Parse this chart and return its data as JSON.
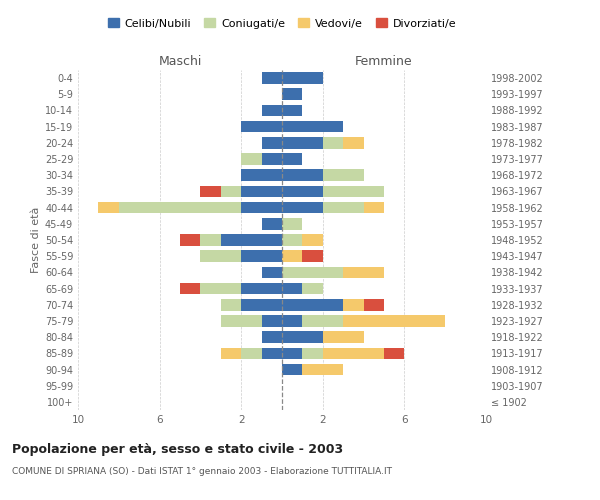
{
  "age_groups": [
    "100+",
    "95-99",
    "90-94",
    "85-89",
    "80-84",
    "75-79",
    "70-74",
    "65-69",
    "60-64",
    "55-59",
    "50-54",
    "45-49",
    "40-44",
    "35-39",
    "30-34",
    "25-29",
    "20-24",
    "15-19",
    "10-14",
    "5-9",
    "0-4"
  ],
  "birth_years": [
    "≤ 1902",
    "1903-1907",
    "1908-1912",
    "1913-1917",
    "1918-1922",
    "1923-1927",
    "1928-1932",
    "1933-1937",
    "1938-1942",
    "1943-1947",
    "1948-1952",
    "1953-1957",
    "1958-1962",
    "1963-1967",
    "1968-1972",
    "1973-1977",
    "1978-1982",
    "1983-1987",
    "1988-1992",
    "1993-1997",
    "1998-2002"
  ],
  "colors": {
    "celibe": "#3d6fad",
    "coniugato": "#c5d8a4",
    "vedovo": "#f5c96b",
    "divorziato": "#d94f3e"
  },
  "maschi": {
    "celibe": [
      0,
      0,
      0,
      1,
      1,
      1,
      2,
      2,
      1,
      2,
      3,
      1,
      2,
      2,
      2,
      1,
      1,
      2,
      1,
      0,
      1
    ],
    "coniugato": [
      0,
      0,
      0,
      1,
      0,
      2,
      1,
      2,
      0,
      2,
      1,
      0,
      6,
      1,
      0,
      1,
      0,
      0,
      0,
      0,
      0
    ],
    "vedovo": [
      0,
      0,
      0,
      1,
      0,
      0,
      0,
      0,
      0,
      0,
      0,
      0,
      1,
      0,
      0,
      0,
      0,
      0,
      0,
      0,
      0
    ],
    "divorziato": [
      0,
      0,
      0,
      0,
      0,
      0,
      0,
      1,
      0,
      0,
      1,
      0,
      0,
      1,
      0,
      0,
      0,
      0,
      0,
      0,
      0
    ]
  },
  "femmine": {
    "celibe": [
      0,
      0,
      1,
      1,
      2,
      1,
      3,
      1,
      0,
      0,
      0,
      0,
      2,
      2,
      2,
      1,
      2,
      3,
      1,
      1,
      2
    ],
    "coniugato": [
      0,
      0,
      0,
      1,
      0,
      2,
      0,
      1,
      3,
      0,
      1,
      1,
      2,
      3,
      2,
      0,
      1,
      0,
      0,
      0,
      0
    ],
    "vedovo": [
      0,
      0,
      2,
      3,
      2,
      5,
      1,
      0,
      2,
      1,
      1,
      0,
      1,
      0,
      0,
      0,
      1,
      0,
      0,
      0,
      0
    ],
    "divorziato": [
      0,
      0,
      0,
      1,
      0,
      0,
      1,
      0,
      0,
      1,
      0,
      0,
      0,
      0,
      0,
      0,
      0,
      0,
      0,
      0,
      0
    ]
  },
  "title": "Popolazione per età, sesso e stato civile - 2003",
  "subtitle": "COMUNE DI SPRIANA (SO) - Dati ISTAT 1° gennaio 2003 - Elaborazione TUTTITALIA.IT",
  "xlabel_left": "Maschi",
  "xlabel_right": "Femmine",
  "ylabel_left": "Fasce di età",
  "legend_labels": [
    "Celibi/Nubili",
    "Coniugati/e",
    "Vedovi/e",
    "Divorziati/e"
  ],
  "xlim": 10,
  "background_color": "#ffffff"
}
